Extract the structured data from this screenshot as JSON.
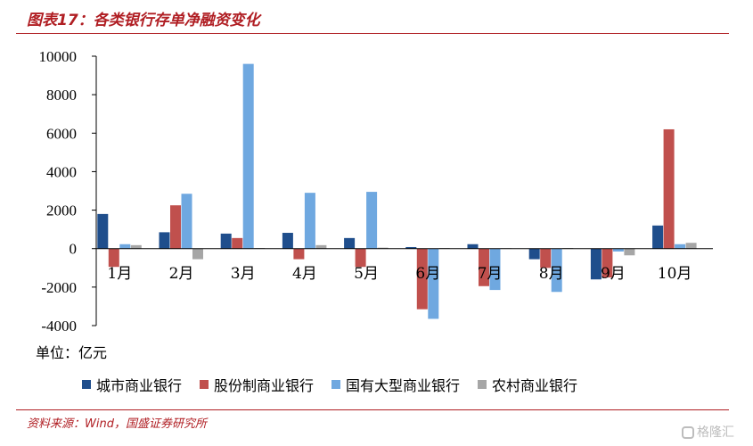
{
  "header": {
    "title": "图表17：各类银行存单净融资变化"
  },
  "footer": {
    "source": "资料来源：Wind，国盛证券研究所",
    "watermark": "格隆汇"
  },
  "unit_label": "单位：亿元",
  "chart_data": {
    "type": "bar",
    "categories": [
      "1月",
      "2月",
      "3月",
      "4月",
      "5月",
      "6月",
      "7月",
      "8月",
      "9月",
      "10月"
    ],
    "series": [
      {
        "name": "城市商业银行",
        "color": "#1f4e8c",
        "values": [
          1800,
          850,
          780,
          820,
          550,
          80,
          230,
          -550,
          -1600,
          1200
        ]
      },
      {
        "name": "股份制商业银行",
        "color": "#c0504d",
        "values": [
          -950,
          2250,
          550,
          -550,
          -950,
          -3150,
          -1950,
          -1000,
          -1500,
          6200
        ]
      },
      {
        "name": "国有大型商业银行",
        "color": "#6fa8e0",
        "values": [
          230,
          2850,
          9600,
          2900,
          2950,
          -3650,
          -2150,
          -2250,
          -150,
          230
        ]
      },
      {
        "name": "农村商业银行",
        "color": "#a6a6a6",
        "values": [
          180,
          -550,
          30,
          180,
          50,
          30,
          20,
          30,
          -350,
          300
        ]
      }
    ],
    "ylim": [
      -4000,
      10000
    ],
    "yticks": [
      -4000,
      -2000,
      0,
      2000,
      4000,
      6000,
      8000,
      10000
    ],
    "legend_position": "bottom",
    "grid": false
  }
}
